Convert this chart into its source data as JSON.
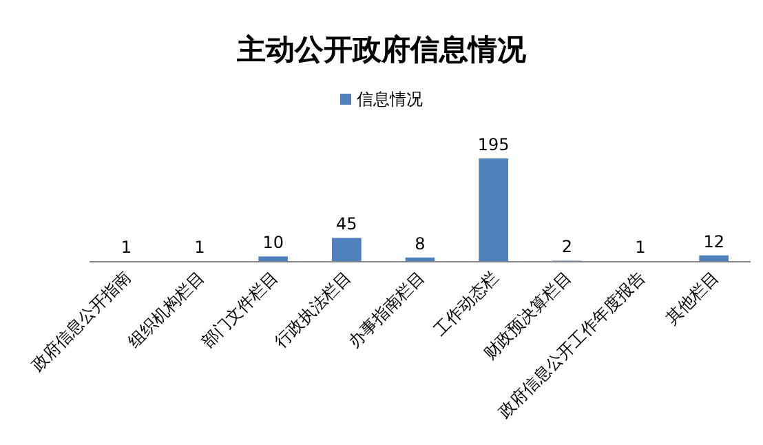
{
  "chart_data": {
    "type": "bar",
    "title": "主动公开政府信息情况",
    "categories": [
      "政府信息公开指南",
      "组织机构栏目",
      "部门文件栏目",
      "行政执法栏目",
      "办事指南栏目",
      "工作动态栏",
      "财政预决算栏目",
      "政府信息公开工作年度报告",
      "其他栏目"
    ],
    "series": [
      {
        "name": "信息情况",
        "color": "#4f81bd",
        "values": [
          1,
          1,
          10,
          45,
          8,
          195,
          2,
          1,
          12
        ]
      }
    ],
    "data_labels": true,
    "legend": "top"
  }
}
